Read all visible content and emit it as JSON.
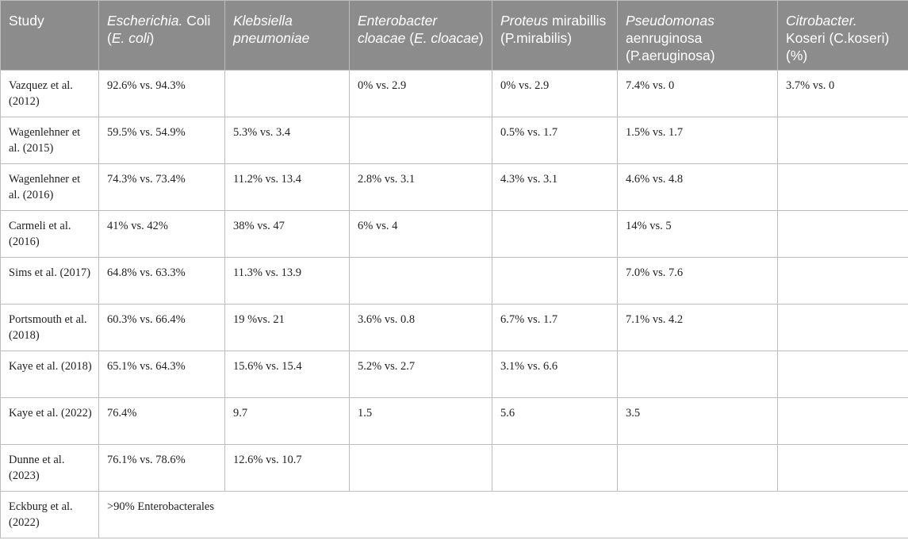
{
  "header": {
    "study": "Study",
    "col1": {
      "it": "Escherichia.",
      "rest_a": " Coli (",
      "it2": "E. coli",
      "rest_b": ")"
    },
    "col2": {
      "it": "Klebsiella pneumoniae"
    },
    "col3": {
      "it": "Enterobacter cloacae",
      "rest_a": " (",
      "it2": "E. cloacae",
      "rest_b": ")"
    },
    "col4": {
      "it": "Proteus",
      "rest_a": " mirabillis (P.mirabilis)"
    },
    "col5": {
      "it": "Pseudomonas",
      "rest_a": " aenruginosa (P.aeruginosa)"
    },
    "col6": {
      "it": "Citrobacter.",
      "rest_a": " Koseri (C.koseri) (%)"
    }
  },
  "rows": [
    {
      "study": "Vazquez et al. (2012)",
      "c1": "92.6% vs. 94.3%",
      "c2": "",
      "c3": "0% vs. 2.9",
      "c4": "0% vs. 2.9",
      "c5": "7.4% vs. 0",
      "c6": "3.7% vs. 0"
    },
    {
      "study": "Wagenlehner et al. (2015)",
      "c1": "59.5% vs. 54.9%",
      "c2": "5.3% vs. 3.4",
      "c3": "",
      "c4": "0.5% vs. 1.7",
      "c5": "1.5% vs. 1.7",
      "c6": ""
    },
    {
      "study": "Wagenlehner et al. (2016)",
      "c1": "74.3% vs. 73.4%",
      "c2": "11.2% vs. 13.4",
      "c3": "2.8% vs. 3.1",
      "c4": "4.3% vs. 3.1",
      "c5": "4.6% vs. 4.8",
      "c6": ""
    },
    {
      "study": "Carmeli et al. (2016)",
      "c1": "41% vs. 42%",
      "c2": "38% vs. 47",
      "c3": "6% vs. 4",
      "c4": "",
      "c5": "14% vs. 5",
      "c6": ""
    },
    {
      "study": "Sims et al. (2017)",
      "c1": "64.8% vs. 63.3%",
      "c2": "11.3% vs. 13.9",
      "c3": "",
      "c4": "",
      "c5": "7.0% vs. 7.6",
      "c6": ""
    },
    {
      "study": "Portsmouth et al. (2018)",
      "c1": "60.3% vs. 66.4%",
      "c2": "19 %vs. 21",
      "c3": "3.6% vs. 0.8",
      "c4": "6.7% vs. 1.7",
      "c5": "7.1% vs. 4.2",
      "c6": ""
    },
    {
      "study": "Kaye et al. (2018)",
      "c1": "65.1% vs. 64.3%",
      "c2": "15.6% vs. 15.4",
      "c3": "5.2% vs. 2.7",
      "c4": "3.1% vs. 6.6",
      "c5": "",
      "c6": ""
    },
    {
      "study": "Kaye et al. (2022)",
      "c1": "76.4%",
      "c2": "9.7",
      "c3": "1.5",
      "c4": "5.6",
      "c5": "3.5",
      "c6": ""
    },
    {
      "study": "Dunne et al. (2023)",
      "c1": "76.1% vs. 78.6%",
      "c2": "12.6% vs. 10.7",
      "c3": "",
      "c4": "",
      "c5": "",
      "c6": ""
    }
  ],
  "last_row": {
    "study": "Eckburg et al. (2022)",
    "merged": ">90% Enterobacterales"
  }
}
